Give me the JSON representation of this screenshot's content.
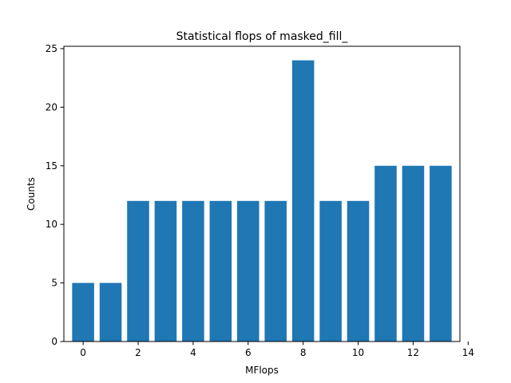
{
  "chart_data": {
    "type": "bar",
    "title": "Statistical flops of masked_fill_",
    "xlabel": "MFlops",
    "ylabel": "Counts",
    "x": [
      0,
      1,
      2,
      3,
      4,
      5,
      6,
      7,
      8,
      9,
      10,
      11,
      12,
      13
    ],
    "values": [
      5,
      5,
      12,
      12,
      12,
      12,
      12,
      12,
      24,
      12,
      12,
      15,
      15,
      15
    ],
    "xlim": [
      -0.7,
      13.7
    ],
    "ylim": [
      0,
      25.2
    ],
    "xticks": [
      0,
      2,
      4,
      6,
      8,
      10,
      12,
      14
    ],
    "yticks": [
      0,
      5,
      10,
      15,
      20,
      25
    ],
    "grid": false,
    "legend": "none",
    "bar_color": "#1f77b4"
  }
}
